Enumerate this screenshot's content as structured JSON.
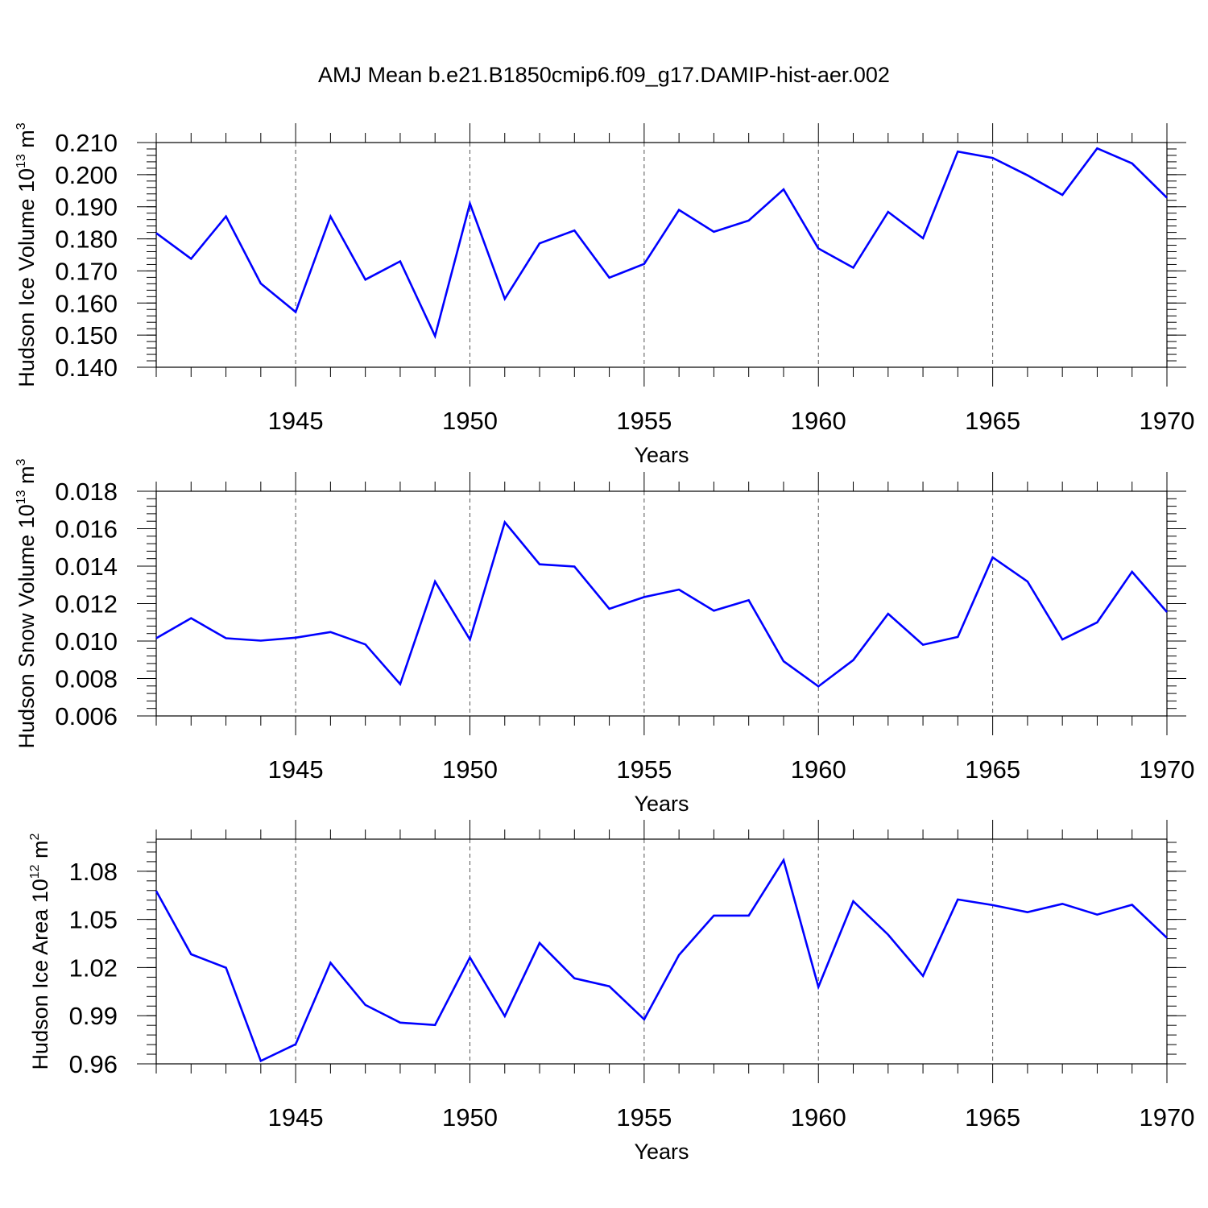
{
  "title": "AMJ Mean b.e21.B1850cmip6.f09_g17.DAMIP-hist-aer.002",
  "chart_data": [
    {
      "type": "line",
      "title": "",
      "xlabel": "Years",
      "ylabel": "Hudson Ice Volume 10",
      "ylabel_sup": "13",
      "ylabel_unit": " m",
      "ylabel_unit_sup": "3",
      "xlim": [
        1941,
        1970
      ],
      "ylim": [
        0.14,
        0.21
      ],
      "yticks": [
        0.14,
        0.15,
        0.16,
        0.17,
        0.18,
        0.19,
        0.2,
        0.21
      ],
      "ytick_labels": [
        "0.140",
        "0.150",
        "0.160",
        "0.170",
        "0.180",
        "0.190",
        "0.200",
        "0.210"
      ],
      "xticks": [
        1945,
        1950,
        1955,
        1960,
        1965,
        1970
      ],
      "xtick_labels": [
        "1945",
        "1950",
        "1955",
        "1960",
        "1965",
        "1970"
      ],
      "grid": "vertical dashed at major x ticks",
      "color": "#0000ff",
      "x": [
        1941,
        1942,
        1943,
        1944,
        1945,
        1946,
        1947,
        1948,
        1949,
        1950,
        1951,
        1952,
        1953,
        1954,
        1955,
        1956,
        1957,
        1958,
        1959,
        1960,
        1961,
        1962,
        1963,
        1964,
        1965,
        1966,
        1967,
        1968,
        1969,
        1970
      ],
      "values": [
        0.1818,
        0.1738,
        0.187,
        0.1661,
        0.1572,
        0.187,
        0.1673,
        0.173,
        0.1497,
        0.191,
        0.1613,
        0.1786,
        0.1826,
        0.1679,
        0.1722,
        0.189,
        0.1822,
        0.1857,
        0.1954,
        0.177,
        0.171,
        0.1884,
        0.1802,
        0.2072,
        0.2052,
        0.1998,
        0.1937,
        0.2082,
        0.2035,
        0.1928
      ]
    },
    {
      "type": "line",
      "title": "",
      "xlabel": "Years",
      "ylabel": "Hudson Snow Volume 10",
      "ylabel_sup": "13",
      "ylabel_unit": " m",
      "ylabel_unit_sup": "3",
      "xlim": [
        1941,
        1970
      ],
      "ylim": [
        0.006,
        0.018
      ],
      "yticks": [
        0.006,
        0.008,
        0.01,
        0.012,
        0.014,
        0.016,
        0.018
      ],
      "ytick_labels": [
        "0.006",
        "0.008",
        "0.010",
        "0.012",
        "0.014",
        "0.016",
        "0.018"
      ],
      "xticks": [
        1945,
        1950,
        1955,
        1960,
        1965,
        1970
      ],
      "xtick_labels": [
        "1945",
        "1950",
        "1955",
        "1960",
        "1965",
        "1970"
      ],
      "grid": "vertical dashed at major x ticks",
      "color": "#0000ff",
      "x": [
        1941,
        1942,
        1943,
        1944,
        1945,
        1946,
        1947,
        1948,
        1949,
        1950,
        1951,
        1952,
        1953,
        1954,
        1955,
        1956,
        1957,
        1958,
        1959,
        1960,
        1961,
        1962,
        1963,
        1964,
        1965,
        1966,
        1967,
        1968,
        1969,
        1970
      ],
      "values": [
        0.01015,
        0.01122,
        0.01015,
        0.01002,
        0.01018,
        0.01048,
        0.00982,
        0.0077,
        0.01318,
        0.01008,
        0.01635,
        0.0141,
        0.01398,
        0.01172,
        0.01235,
        0.01275,
        0.01162,
        0.01218,
        0.00892,
        0.00758,
        0.00898,
        0.01146,
        0.0098,
        0.01022,
        0.01447,
        0.01318,
        0.01008,
        0.011,
        0.0137,
        0.01155
      ]
    },
    {
      "type": "line",
      "title": "",
      "xlabel": "Years",
      "ylabel": "Hudson Ice Area 10",
      "ylabel_sup": "12",
      "ylabel_unit": " m",
      "ylabel_unit_sup": "2",
      "xlim": [
        1941,
        1970
      ],
      "ylim": [
        0.96,
        1.1
      ],
      "yticks": [
        0.96,
        0.99,
        1.02,
        1.05,
        1.08
      ],
      "ytick_labels": [
        "0.96",
        "0.99",
        "1.02",
        "1.05",
        "1.08"
      ],
      "xticks": [
        1945,
        1950,
        1955,
        1960,
        1965,
        1970
      ],
      "xtick_labels": [
        "1945",
        "1950",
        "1955",
        "1960",
        "1965",
        "1970"
      ],
      "grid": "vertical dashed at major x ticks",
      "color": "#0000ff",
      "x": [
        1941,
        1942,
        1943,
        1944,
        1945,
        1946,
        1947,
        1948,
        1949,
        1950,
        1951,
        1952,
        1953,
        1954,
        1955,
        1956,
        1957,
        1958,
        1959,
        1960,
        1961,
        1962,
        1963,
        1964,
        1965,
        1966,
        1967,
        1968,
        1969,
        1970
      ],
      "values": [
        1.0677,
        1.0283,
        1.0199,
        0.9618,
        0.9722,
        1.023,
        0.9967,
        0.9857,
        0.9842,
        1.0263,
        0.9897,
        1.0353,
        1.0133,
        1.0083,
        0.9877,
        1.0278,
        1.0524,
        1.0524,
        1.0869,
        1.0079,
        1.0613,
        1.0405,
        1.0148,
        1.0624,
        1.0589,
        1.0545,
        1.0597,
        1.053,
        1.0591,
        1.0385
      ]
    }
  ]
}
